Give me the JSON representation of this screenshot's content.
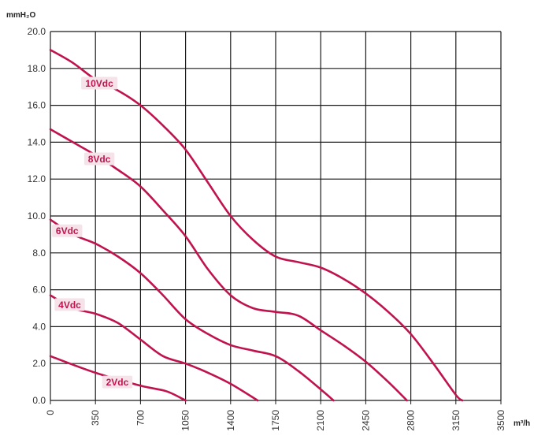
{
  "chart_data": {
    "type": "line",
    "ylabel": "mmH₂O",
    "xlabel": "m³/h",
    "xlim": [
      0,
      3500
    ],
    "ylim": [
      0,
      20
    ],
    "grid": true,
    "x_ticks": [
      "0",
      "350",
      "700",
      "1050",
      "1400",
      "1750",
      "2100",
      "2450",
      "2800",
      "3150",
      "3500"
    ],
    "y_ticks": [
      "0.0",
      "2.0",
      "4.0",
      "6.0",
      "8.0",
      "10.0",
      "12.0",
      "14.0",
      "16.0",
      "18.0",
      "20.0"
    ],
    "series": [
      {
        "name": "2Vdc",
        "points": [
          [
            0,
            2.4
          ],
          [
            350,
            1.5
          ],
          [
            700,
            0.8
          ],
          [
            900,
            0.5
          ],
          [
            1050,
            0.0
          ]
        ]
      },
      {
        "name": "4Vdc",
        "points": [
          [
            0,
            5.7
          ],
          [
            175,
            5.0
          ],
          [
            350,
            4.7
          ],
          [
            525,
            4.2
          ],
          [
            700,
            3.3
          ],
          [
            875,
            2.4
          ],
          [
            1050,
            2.0
          ],
          [
            1225,
            1.5
          ],
          [
            1400,
            0.9
          ],
          [
            1610,
            0.0
          ]
        ]
      },
      {
        "name": "6Vdc",
        "points": [
          [
            0,
            9.8
          ],
          [
            175,
            9.0
          ],
          [
            350,
            8.5
          ],
          [
            525,
            7.8
          ],
          [
            700,
            6.9
          ],
          [
            875,
            5.7
          ],
          [
            1050,
            4.4
          ],
          [
            1225,
            3.6
          ],
          [
            1400,
            3.0
          ],
          [
            1575,
            2.7
          ],
          [
            1750,
            2.4
          ],
          [
            1925,
            1.6
          ],
          [
            2100,
            0.6
          ],
          [
            2200,
            0.0
          ]
        ]
      },
      {
        "name": "8Vdc",
        "points": [
          [
            0,
            14.7
          ],
          [
            175,
            14.0
          ],
          [
            350,
            13.3
          ],
          [
            525,
            12.5
          ],
          [
            700,
            11.6
          ],
          [
            875,
            10.3
          ],
          [
            1050,
            8.9
          ],
          [
            1225,
            7.1
          ],
          [
            1400,
            5.7
          ],
          [
            1575,
            5.0
          ],
          [
            1750,
            4.8
          ],
          [
            1925,
            4.6
          ],
          [
            2100,
            3.8
          ],
          [
            2275,
            3.0
          ],
          [
            2450,
            2.1
          ],
          [
            2625,
            1.0
          ],
          [
            2770,
            0.0
          ]
        ]
      },
      {
        "name": "10Vdc",
        "points": [
          [
            0,
            19.0
          ],
          [
            175,
            18.3
          ],
          [
            350,
            17.4
          ],
          [
            525,
            16.8
          ],
          [
            700,
            16.0
          ],
          [
            875,
            14.9
          ],
          [
            1050,
            13.6
          ],
          [
            1225,
            11.8
          ],
          [
            1400,
            10.0
          ],
          [
            1575,
            8.7
          ],
          [
            1750,
            7.8
          ],
          [
            1925,
            7.5
          ],
          [
            2100,
            7.2
          ],
          [
            2275,
            6.6
          ],
          [
            2450,
            5.8
          ],
          [
            2625,
            4.8
          ],
          [
            2800,
            3.6
          ],
          [
            2975,
            2.0
          ],
          [
            3150,
            0.3
          ],
          [
            3200,
            0.0
          ]
        ]
      }
    ],
    "colors": {
      "curve": "#c0134e",
      "grid": "#1a1a1a",
      "label_bg": "#f6e3ea",
      "label_text": "#c0134e"
    }
  }
}
